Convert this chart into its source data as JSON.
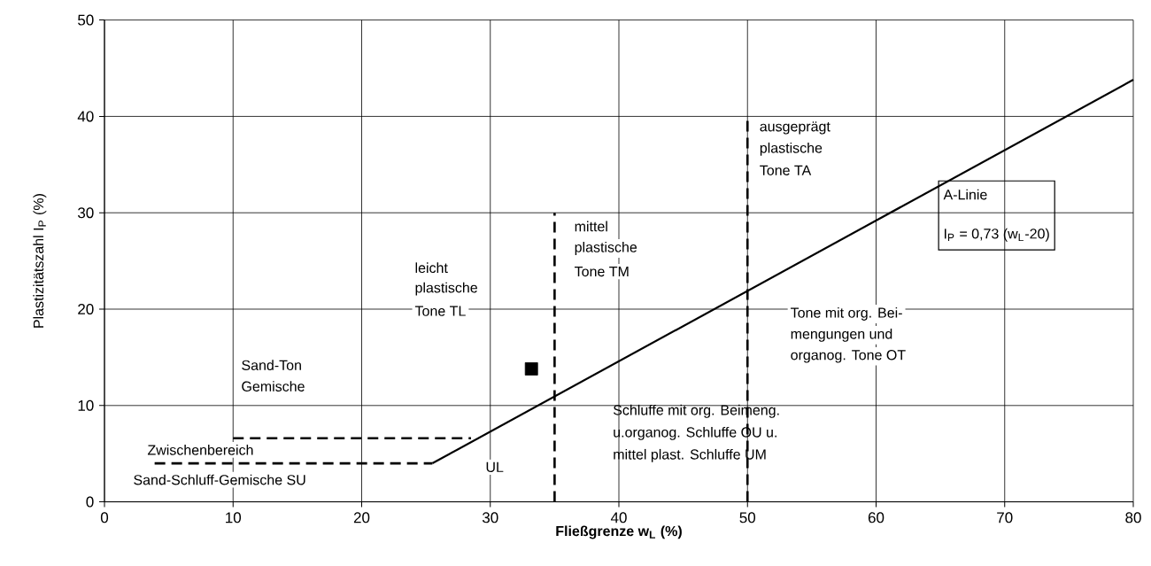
{
  "chart_data": {
    "type": "line",
    "xlabel": "**Fließgrenze w$_{L}$ (%)**",
    "ylabel": "Plastizitätszahl I$_{P}$ (%)",
    "xlim": [
      0,
      80
    ],
    "ylim": [
      0,
      50
    ],
    "xticks": [
      0,
      10,
      20,
      30,
      40,
      50,
      60,
      70,
      80
    ],
    "yticks": [
      0,
      10,
      20,
      30,
      40,
      50
    ],
    "grid": true,
    "series": [
      {
        "color": "#000000",
        "line_style": "solid",
        "marker": "none",
        "x": [
          25.5,
          80
        ],
        "values": [
          4,
          43.8
        ]
      },
      {
        "color": "#000000",
        "line_style": "dashed",
        "marker": "none",
        "x": [
          3.9,
          25.5
        ],
        "values": [
          4,
          4
        ]
      },
      {
        "color": "#000000",
        "line_style": "dashed",
        "marker": "none",
        "x": [
          10,
          28.5
        ],
        "values": [
          6.6,
          6.6
        ]
      },
      {
        "color": "#000000",
        "line_style": "dashed",
        "marker": "none",
        "x": [
          35,
          35
        ],
        "values": [
          0,
          30
        ]
      },
      {
        "color": "#000000",
        "line_style": "dashed",
        "marker": "none",
        "x": [
          50,
          50
        ],
        "values": [
          0,
          40
        ]
      },
      {
        "type": "scatter",
        "color": "#000000",
        "marker": "square",
        "x": [
          33.2
        ],
        "values": [
          13.8
        ]
      }
    ],
    "annotations": [
      "A-Linie",
      "I$_{P}$ = 0,73 (w$_{L}$-20)",
      "Sand-Ton",
      "Gemische",
      "Zwischenbereich",
      "Sand-Schluff-Gemische SU",
      "UL",
      "leicht",
      "plastische",
      "Tone TL",
      "mittel",
      "plastische",
      "Tone TM",
      "ausgeprägt",
      "plastische",
      "Tone TA",
      "Tone mit org. Bei-",
      "mengungen und",
      "organog. Tone OT",
      "Schluffe mit org. Beimeng.",
      "u.organog. Schluffe OU u.",
      "mittel plast. Schluffe UM"
    ]
  }
}
